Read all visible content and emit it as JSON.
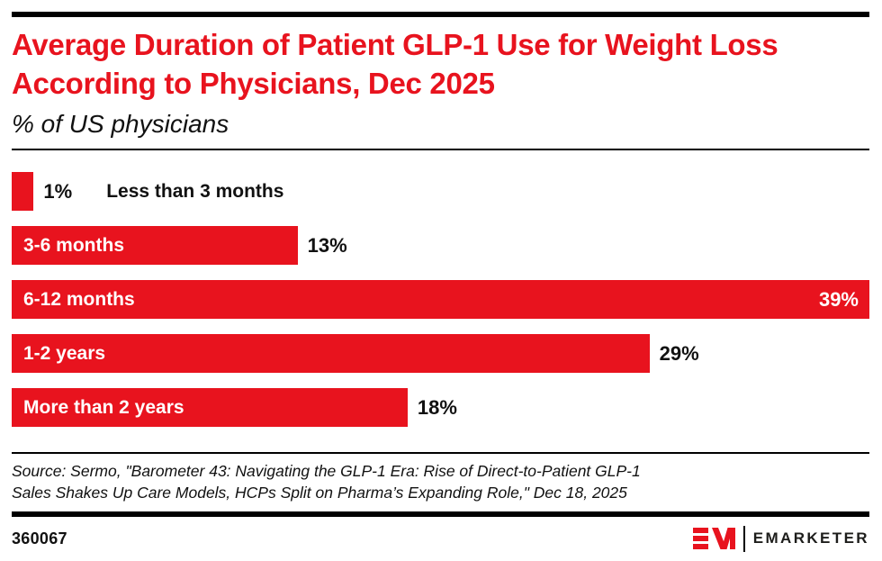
{
  "colors": {
    "accent": "#E8131E",
    "bar": "#E8131E",
    "bar_label": "#FFFFFF",
    "text": "#111111"
  },
  "header": {
    "title": "Average Duration of Patient GLP-1 Use for Weight Loss According to Physicians, Dec 2025",
    "subtitle": "% of US physicians"
  },
  "chart_data": {
    "type": "bar",
    "orientation": "horizontal",
    "title": "Average Duration of Patient GLP-1 Use for Weight Loss According to Physicians, Dec 2025",
    "subtitle": "% of US physicians",
    "unit": "% of US physicians",
    "categories": [
      "Less than 3 months",
      "3-6 months",
      "6-12 months",
      "1-2 years",
      "More than 2 years"
    ],
    "values": [
      1,
      13,
      39,
      29,
      18
    ],
    "value_labels": [
      "1%",
      "13%",
      "39%",
      "29%",
      "18%"
    ],
    "xlim": [
      0,
      39
    ],
    "grid": false,
    "legend": false,
    "category_inside": [
      false,
      true,
      true,
      true,
      true
    ],
    "value_inside": [
      false,
      false,
      true,
      false,
      false
    ],
    "bar_color": "#E8131E"
  },
  "source": {
    "lines": [
      "Source: Sermo, \"Barometer 43: Navigating the GLP-1 Era: Rise of Direct-to-Patient GLP-1",
      "Sales Shakes Up Care Models, HCPs Split on Pharma’s Expanding Role,\" Dec 18, 2025"
    ]
  },
  "footer": {
    "chart_id": "360067",
    "brand": "EMARKETER"
  }
}
